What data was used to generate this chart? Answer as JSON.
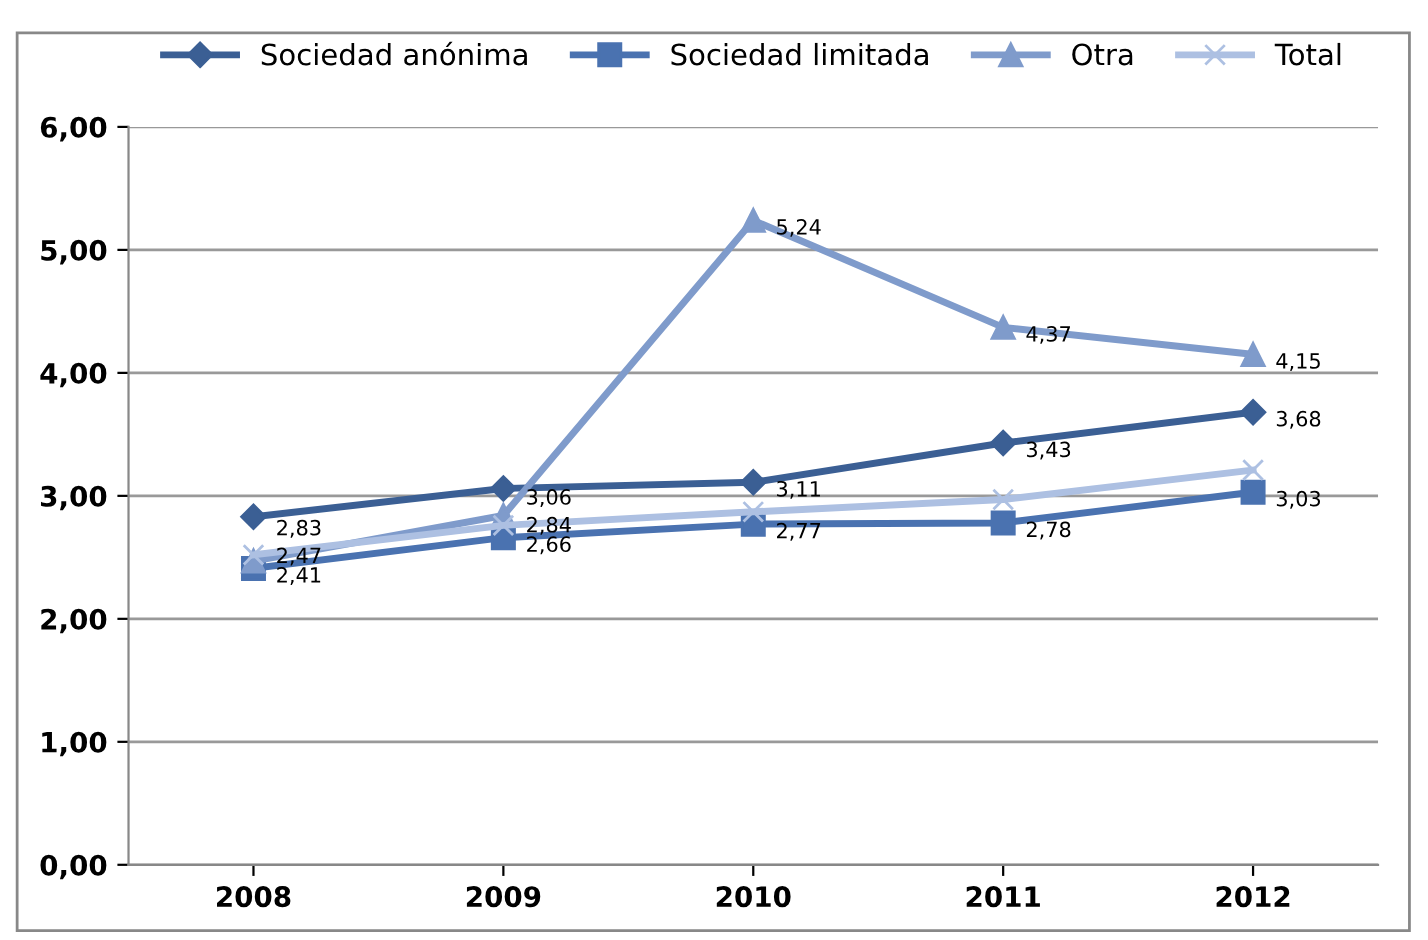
{
  "chart_data": {
    "type": "line",
    "categories": [
      "2008",
      "2009",
      "2010",
      "2011",
      "2012"
    ],
    "ylim": [
      0,
      6
    ],
    "yticks": [
      {
        "value": 0,
        "label": "0,00"
      },
      {
        "value": 1,
        "label": "1,00"
      },
      {
        "value": 2,
        "label": "2,00"
      },
      {
        "value": 3,
        "label": "3,00"
      },
      {
        "value": 4,
        "label": "4,00"
      },
      {
        "value": 5,
        "label": "5,00"
      },
      {
        "value": 6,
        "label": "6,00"
      }
    ],
    "grid": "y",
    "legend": "top",
    "series": [
      {
        "name": "Sociedad anónima",
        "color": "#3b5f94",
        "marker": "diamond",
        "values": [
          2.83,
          3.06,
          3.11,
          3.43,
          3.68
        ],
        "value_labels": [
          "2,83",
          "3,06",
          "3,11",
          "3,43",
          "3,68"
        ]
      },
      {
        "name": "Sociedad limitada",
        "color": "#4a72b0",
        "marker": "square",
        "values": [
          2.41,
          2.66,
          2.77,
          2.78,
          3.03
        ],
        "value_labels": [
          "2,41",
          "2,66",
          "2,77",
          "2,78",
          "3,03"
        ]
      },
      {
        "name": "Otra",
        "color": "#7f9bcb",
        "marker": "triangle",
        "values": [
          2.47,
          2.84,
          5.24,
          4.37,
          4.15
        ],
        "value_labels": [
          "2,47",
          "2,84",
          "5,24",
          "4,37",
          "4,15"
        ]
      },
      {
        "name": "Total",
        "color": "#adc0e2",
        "marker": "cross",
        "values": [
          2.52,
          2.76,
          2.87,
          2.97,
          3.21
        ]
      }
    ]
  }
}
